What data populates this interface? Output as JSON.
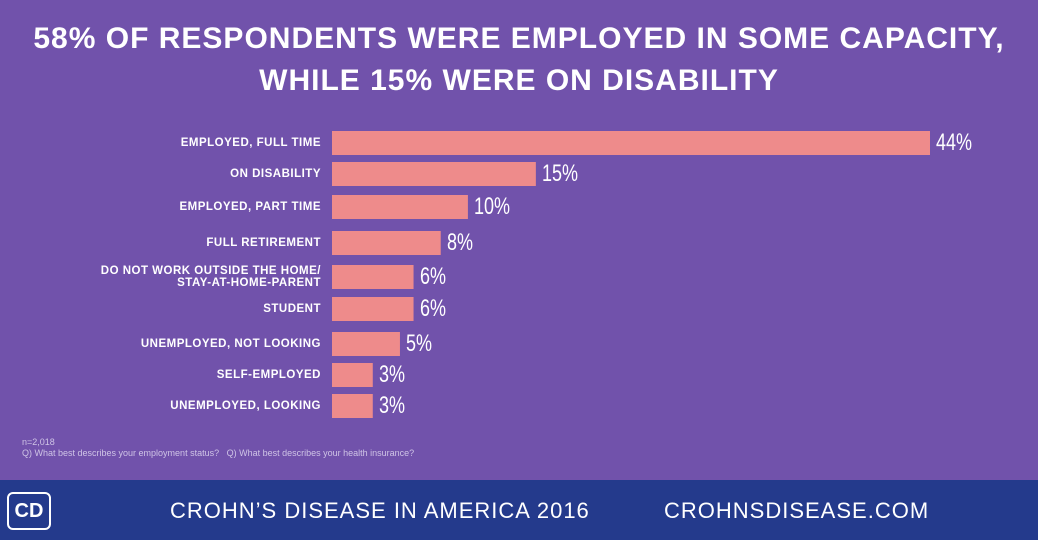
{
  "chart_data": {
    "type": "bar",
    "orientation": "horizontal",
    "title": "58% OF RESPONDENTS WERE EMPLOYED IN SOME CAPACITY,\nWHILE 15% WERE ON DISABILITY",
    "categories": [
      "EMPLOYED, FULL TIME",
      "ON DISABILITY",
      "EMPLOYED, PART TIME",
      "FULL RETIREMENT",
      "DO NOT WORK OUTSIDE THE HOME/\nSTAY-AT-HOME-PARENT",
      "STUDENT",
      "UNEMPLOYED, NOT LOOKING",
      "SELF-EMPLOYED",
      "UNEMPLOYED, LOOKING"
    ],
    "values": [
      44,
      15,
      10,
      8,
      6,
      6,
      5,
      3,
      3
    ],
    "value_labels": [
      "44%",
      "15%",
      "10%",
      "8%",
      "6%",
      "6%",
      "5%",
      "3%",
      "3%"
    ],
    "color": "#ee8b8b",
    "notes": [
      "n=2,018",
      "Q) What best describes your employment status?   Q) What best describes your health insurance?"
    ]
  },
  "footer": {
    "logo": "CD",
    "title": "CROHN’S DISEASE IN AMERICA 2016",
    "site": "CROHNSDISEASE.COM"
  }
}
